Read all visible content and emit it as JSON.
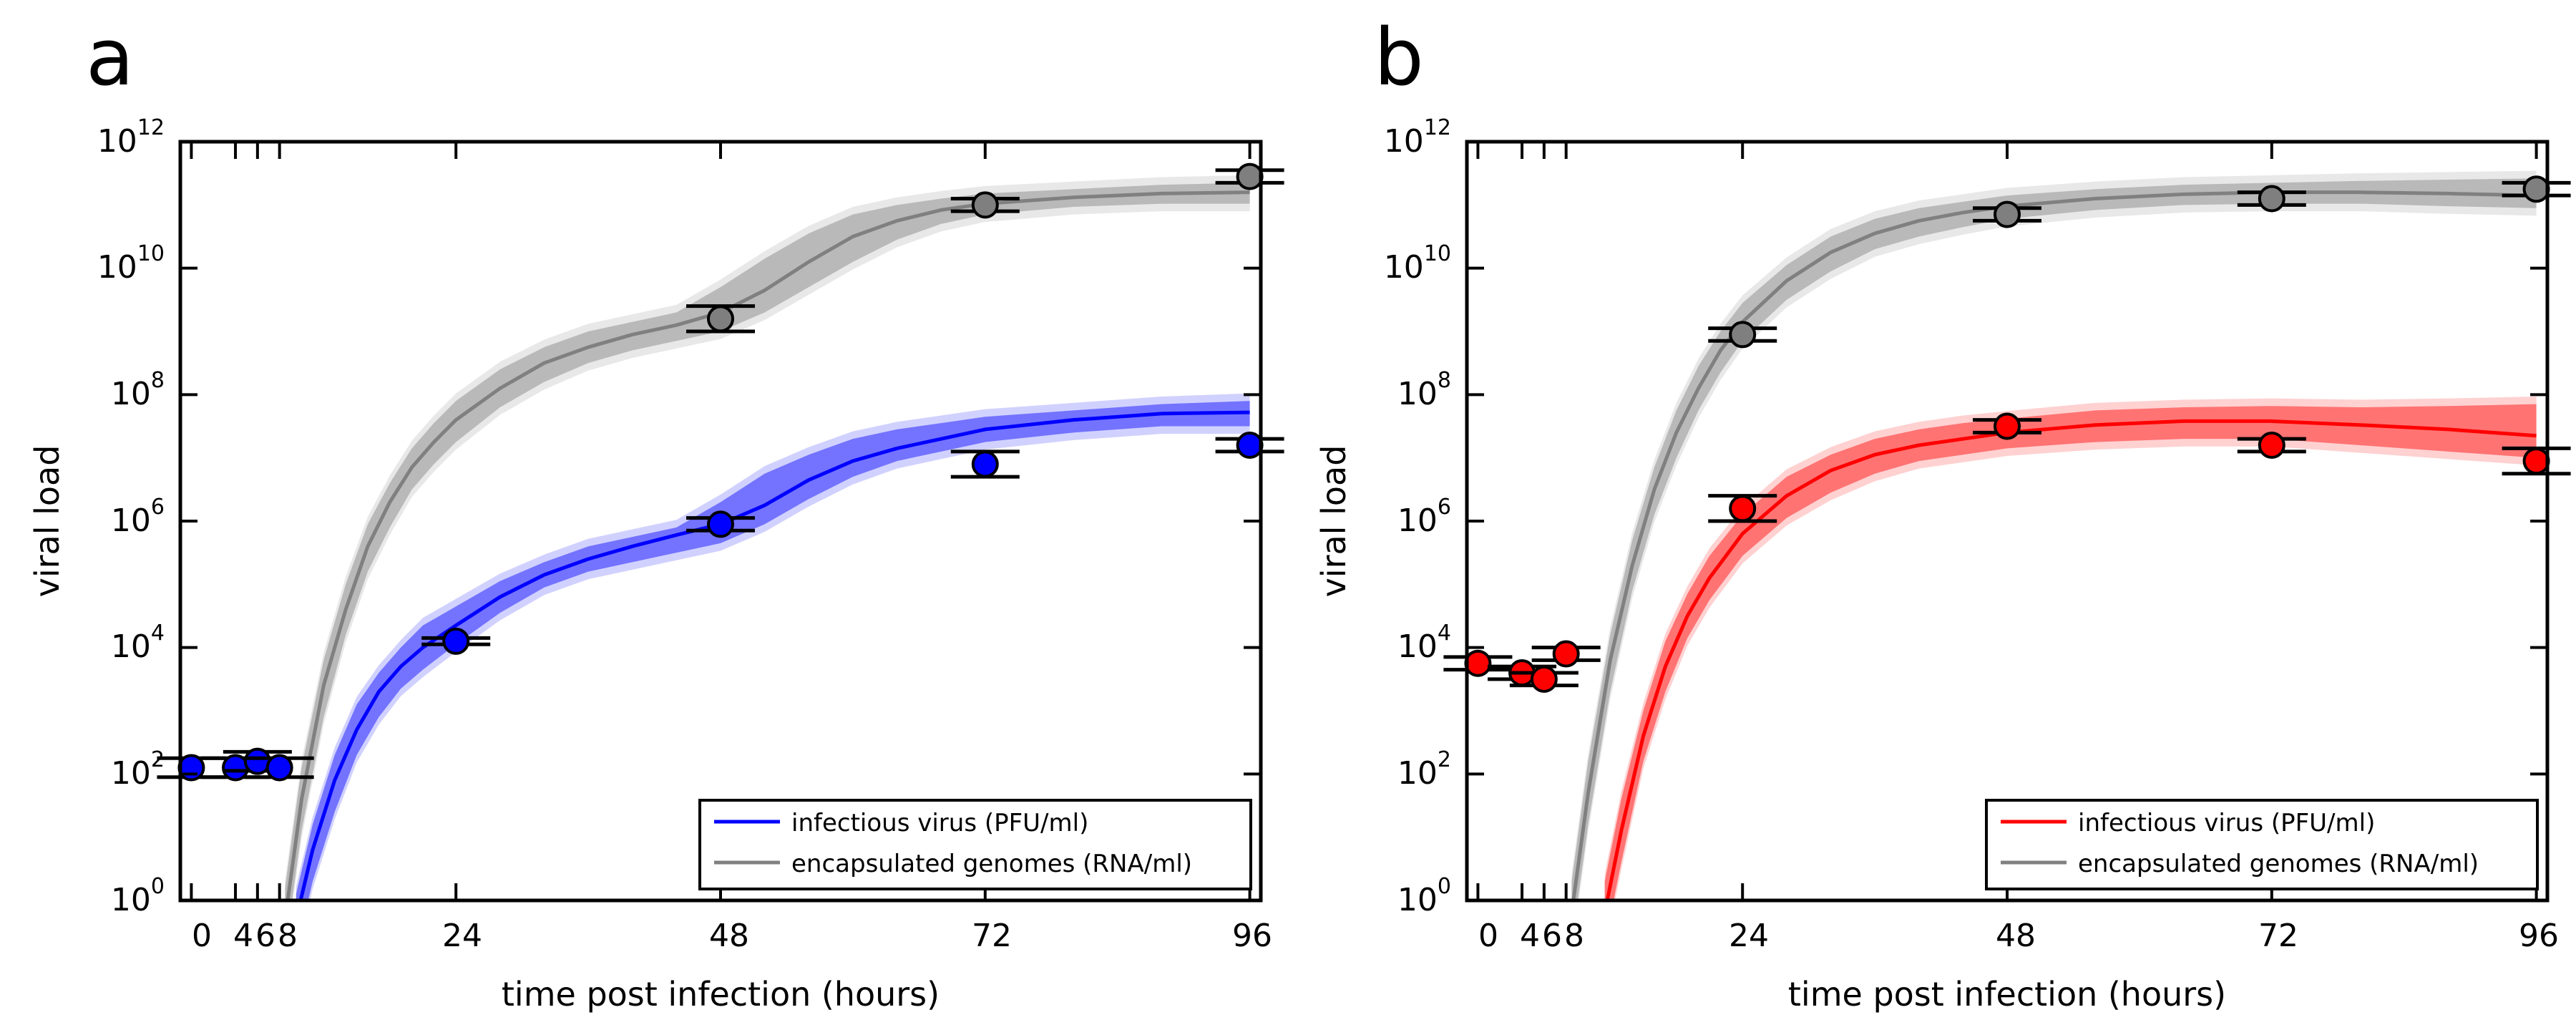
{
  "colors": {
    "blue": "#0000ff",
    "red": "#ff0000",
    "gray": "#808080",
    "gray_marker": "#7f7f7f",
    "axis": "#000000"
  },
  "chart_data": [
    {
      "type": "line",
      "panel_label": "a",
      "xlabel": "time post infection (hours)",
      "ylabel": "viral load",
      "xlim": [
        -1,
        97
      ],
      "ylim_log10": [
        0,
        12
      ],
      "yscale": "log",
      "xticks": [
        0,
        4,
        6,
        8,
        24,
        48,
        72,
        96
      ],
      "xtick_labels": [
        "0",
        "4",
        "6",
        "8",
        "24",
        "48",
        "72",
        "96"
      ],
      "yticks_exponent": [
        0,
        2,
        4,
        6,
        8,
        10,
        12
      ],
      "ytick_base": "10",
      "legend": {
        "position": "lower-right",
        "entries": [
          "infectious virus (PFU/ml)",
          "encapsulated genomes (RNA/ml)"
        ]
      },
      "series": [
        {
          "name": "infectious virus (PFU/ml)",
          "color_key": "blue",
          "observed": [
            {
              "t": 0,
              "log10": 2.1,
              "err": 0.15
            },
            {
              "t": 4,
              "log10": 2.1,
              "err": 0.15
            },
            {
              "t": 6,
              "log10": 2.2,
              "err": 0.15
            },
            {
              "t": 8,
              "log10": 2.1,
              "err": 0.15
            },
            {
              "t": 24,
              "log10": 4.1,
              "err": 0.05
            },
            {
              "t": 48,
              "log10": 5.95,
              "err": 0.1
            },
            {
              "t": 72,
              "log10": 6.9,
              "err": 0.2
            },
            {
              "t": 96,
              "log10": 7.2,
              "err": 0.1
            }
          ],
          "model_t": [
            9.5,
            11,
            13,
            15,
            17,
            19,
            21,
            24,
            28,
            32,
            36,
            40,
            44,
            48,
            52,
            56,
            60,
            64,
            68,
            72,
            80,
            88,
            96
          ],
          "model_mid": [
            -0.3,
            0.8,
            1.9,
            2.7,
            3.3,
            3.7,
            4.0,
            4.35,
            4.8,
            5.15,
            5.4,
            5.6,
            5.78,
            5.95,
            6.25,
            6.65,
            6.95,
            7.15,
            7.3,
            7.45,
            7.6,
            7.7,
            7.72
          ],
          "model_lo": [
            -0.8,
            0.3,
            1.4,
            2.3,
            2.9,
            3.35,
            3.65,
            4.05,
            4.55,
            4.95,
            5.2,
            5.35,
            5.5,
            5.65,
            5.95,
            6.35,
            6.7,
            6.95,
            7.1,
            7.25,
            7.4,
            7.5,
            7.5
          ],
          "model_hi": [
            0.1,
            1.2,
            2.3,
            3.1,
            3.6,
            4.0,
            4.35,
            4.65,
            5.05,
            5.35,
            5.6,
            5.75,
            5.9,
            6.3,
            6.75,
            7.05,
            7.3,
            7.45,
            7.55,
            7.65,
            7.75,
            7.85,
            7.9
          ]
        },
        {
          "name": "encapsulated genomes (RNA/ml)",
          "color_key": "gray",
          "observed": [
            {
              "t": 48,
              "log10": 9.2,
              "err": 0.2
            },
            {
              "t": 72,
              "log10": 11.0,
              "err": 0.1
            },
            {
              "t": 96,
              "log10": 11.45,
              "err": 0.1
            }
          ],
          "model_t": [
            8.5,
            10,
            12,
            14,
            16,
            18,
            20,
            22,
            24,
            28,
            32,
            36,
            40,
            44,
            48,
            52,
            56,
            60,
            64,
            68,
            72,
            80,
            88,
            96
          ],
          "model_mid": [
            -0.3,
            1.6,
            3.4,
            4.6,
            5.6,
            6.3,
            6.85,
            7.25,
            7.6,
            8.1,
            8.5,
            8.75,
            8.95,
            9.1,
            9.3,
            9.65,
            10.1,
            10.5,
            10.75,
            10.92,
            11.02,
            11.12,
            11.18,
            11.2
          ],
          "model_lo": [
            -0.8,
            1.1,
            2.9,
            4.2,
            5.2,
            5.9,
            6.5,
            6.9,
            7.25,
            7.8,
            8.2,
            8.5,
            8.7,
            8.85,
            9.0,
            9.3,
            9.7,
            10.1,
            10.45,
            10.7,
            10.85,
            10.97,
            11.02,
            11.02
          ],
          "model_hi": [
            0.2,
            2.1,
            3.8,
            5.0,
            5.95,
            6.6,
            7.15,
            7.55,
            7.9,
            8.4,
            8.75,
            9.0,
            9.15,
            9.3,
            9.7,
            10.15,
            10.55,
            10.85,
            11.0,
            11.1,
            11.18,
            11.25,
            11.32,
            11.35
          ]
        }
      ]
    },
    {
      "type": "line",
      "panel_label": "b",
      "xlabel": "time post infection (hours)",
      "ylabel": "viral load",
      "xlim": [
        -1,
        97
      ],
      "ylim_log10": [
        0,
        12
      ],
      "yscale": "log",
      "xticks": [
        0,
        4,
        6,
        8,
        24,
        48,
        72,
        96
      ],
      "xtick_labels": [
        "0",
        "4",
        "6",
        "8",
        "24",
        "48",
        "72",
        "96"
      ],
      "yticks_exponent": [
        0,
        2,
        4,
        6,
        8,
        10,
        12
      ],
      "ytick_base": "10",
      "legend": {
        "position": "lower-right",
        "entries": [
          "infectious virus (PFU/ml)",
          "encapsulated genomes (RNA/ml)"
        ]
      },
      "series": [
        {
          "name": "infectious virus (PFU/ml)",
          "color_key": "red",
          "observed": [
            {
              "t": 0,
              "log10": 3.75,
              "err": 0.1
            },
            {
              "t": 4,
              "log10": 3.6,
              "err": 0.1
            },
            {
              "t": 6,
              "log10": 3.5,
              "err": 0.1
            },
            {
              "t": 8,
              "log10": 3.9,
              "err": 0.1
            },
            {
              "t": 24,
              "log10": 6.2,
              "err": 0.2
            },
            {
              "t": 48,
              "log10": 7.5,
              "err": 0.1
            },
            {
              "t": 72,
              "log10": 7.2,
              "err": 0.1
            },
            {
              "t": 96,
              "log10": 6.95,
              "err": 0.2
            }
          ],
          "model_t": [
            11.5,
            13,
            15,
            17,
            19,
            21,
            24,
            28,
            32,
            36,
            40,
            44,
            48,
            56,
            64,
            72,
            80,
            88,
            96
          ],
          "model_mid": [
            -0.2,
            1.1,
            2.6,
            3.7,
            4.5,
            5.1,
            5.8,
            6.4,
            6.8,
            7.05,
            7.2,
            7.3,
            7.4,
            7.52,
            7.58,
            7.58,
            7.52,
            7.45,
            7.35
          ],
          "model_lo": [
            -0.7,
            0.6,
            2.2,
            3.3,
            4.15,
            4.75,
            5.45,
            6.05,
            6.45,
            6.75,
            6.95,
            7.05,
            7.15,
            7.25,
            7.3,
            7.3,
            7.2,
            7.1,
            7.0
          ],
          "model_hi": [
            0.3,
            1.6,
            3.0,
            4.1,
            4.85,
            5.45,
            6.1,
            6.7,
            7.05,
            7.3,
            7.45,
            7.55,
            7.62,
            7.75,
            7.8,
            7.82,
            7.8,
            7.82,
            7.85
          ]
        },
        {
          "name": "encapsulated genomes (RNA/ml)",
          "color_key": "gray",
          "observed": [
            {
              "t": 24,
              "log10": 8.95,
              "err": 0.1
            },
            {
              "t": 48,
              "log10": 10.85,
              "err": 0.1
            },
            {
              "t": 72,
              "log10": 11.1,
              "err": 0.1
            },
            {
              "t": 96,
              "log10": 11.25,
              "err": 0.1
            }
          ],
          "model_t": [
            8.5,
            10,
            12,
            14,
            16,
            18,
            20,
            22,
            24,
            28,
            32,
            36,
            40,
            44,
            48,
            56,
            64,
            72,
            80,
            88,
            96
          ],
          "model_mid": [
            -0.2,
            1.7,
            3.8,
            5.3,
            6.5,
            7.4,
            8.1,
            8.7,
            9.15,
            9.8,
            10.25,
            10.55,
            10.75,
            10.88,
            10.98,
            11.1,
            11.17,
            11.2,
            11.2,
            11.18,
            11.15
          ],
          "model_lo": [
            -0.7,
            1.2,
            3.3,
            4.9,
            6.1,
            7.0,
            7.75,
            8.35,
            8.85,
            9.5,
            9.95,
            10.3,
            10.5,
            10.65,
            10.78,
            10.92,
            11.0,
            11.02,
            11.02,
            10.98,
            10.95
          ],
          "model_hi": [
            0.3,
            2.2,
            4.2,
            5.7,
            6.85,
            7.75,
            8.45,
            9.0,
            9.45,
            10.05,
            10.5,
            10.78,
            10.95,
            11.05,
            11.15,
            11.25,
            11.32,
            11.35,
            11.38,
            11.4,
            11.42
          ]
        }
      ]
    }
  ]
}
